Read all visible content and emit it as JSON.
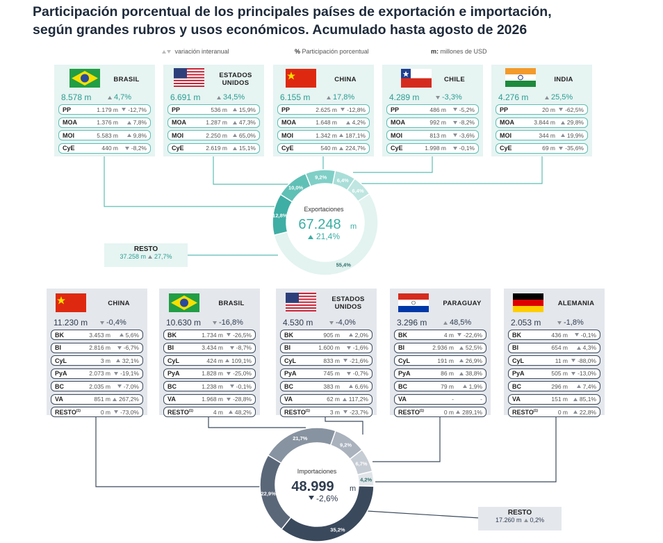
{
  "header": {
    "title": [
      "Participación porcentual de los principales países de exportación e importación,",
      "según grandes rubros y usos económicos. Acumulado hasta agosto de 2026"
    ]
  },
  "legend": {
    "trend": "variación interanual",
    "share_key": "%",
    "share": "Participación porcentual",
    "unit_key": "m:",
    "unit": "millones de USD"
  },
  "exports": {
    "countries": [
      {
        "name": "BRASIL",
        "total": "8.578 m",
        "change": "4,7%",
        "trend": "up",
        "rows": [
          {
            "label": "PP",
            "value": "1.179 m",
            "change": "-12,7%",
            "trend": "down"
          },
          {
            "label": "MOA",
            "value": "1.376 m",
            "change": "7,8%",
            "trend": "up"
          },
          {
            "label": "MOI",
            "value": "5.583 m",
            "change": "9,8%",
            "trend": "up"
          },
          {
            "label": "CyE",
            "value": "440 m",
            "change": "-8,2%",
            "trend": "down"
          }
        ]
      },
      {
        "name": "ESTADOS UNIDOS",
        "total": "6.691 m",
        "change": "34,5%",
        "trend": "up",
        "rows": [
          {
            "label": "PP",
            "value": "536 m",
            "change": "15,9%",
            "trend": "up"
          },
          {
            "label": "MOA",
            "value": "1.287 m",
            "change": "47,3%",
            "trend": "up"
          },
          {
            "label": "MOI",
            "value": "2.250 m",
            "change": "65,0%",
            "trend": "up"
          },
          {
            "label": "CyE",
            "value": "2.619 m",
            "change": "15,1%",
            "trend": "up"
          }
        ]
      },
      {
        "name": "CHINA",
        "total": "6.155 m",
        "change": "17,8%",
        "trend": "up",
        "rows": [
          {
            "label": "PP",
            "value": "2.625 m",
            "change": "-12,8%",
            "trend": "down"
          },
          {
            "label": "MOA",
            "value": "1.648 m",
            "change": "4,2%",
            "trend": "up"
          },
          {
            "label": "MOI",
            "value": "1.342 m",
            "change": "187,1%",
            "trend": "up"
          },
          {
            "label": "CyE",
            "value": "540 m",
            "change": "224,7%",
            "trend": "up"
          }
        ]
      },
      {
        "name": "CHILE",
        "total": "4.289 m",
        "change": "-3,3%",
        "trend": "down",
        "rows": [
          {
            "label": "PP",
            "value": "486 m",
            "change": "-5,2%",
            "trend": "down"
          },
          {
            "label": "MOA",
            "value": "992 m",
            "change": "-8,2%",
            "trend": "down"
          },
          {
            "label": "MOI",
            "value": "813 m",
            "change": "-3,6%",
            "trend": "down"
          },
          {
            "label": "CyE",
            "value": "1.998 m",
            "change": "-0,1%",
            "trend": "down"
          }
        ]
      },
      {
        "name": "INDIA",
        "total": "4.276 m",
        "change": "25,5%",
        "trend": "up",
        "rows": [
          {
            "label": "PP",
            "value": "20 m",
            "change": "-62,5%",
            "trend": "down"
          },
          {
            "label": "MOA",
            "value": "3.844 m",
            "change": "29,8%",
            "trend": "up"
          },
          {
            "label": "MOI",
            "value": "344 m",
            "change": "19,9%",
            "trend": "up"
          },
          {
            "label": "CyE",
            "value": "69 m",
            "change": "-35,6%",
            "trend": "down"
          }
        ]
      }
    ],
    "resto": {
      "name": "RESTO",
      "total": "37.258 m",
      "change": "27,7%"
    },
    "donut": {
      "label": "Exportaciones",
      "total": "67.248",
      "unit": "m",
      "change": "21,4%",
      "segments": [
        {
          "value": 9.2,
          "label": "9,2%",
          "color": "#7fcfc7"
        },
        {
          "value": 6.4,
          "label": "6,4%",
          "color": "#a9ded8"
        },
        {
          "value": 6.4,
          "label": "6,4%",
          "color": "#bfe6e1"
        },
        {
          "value": 55.4,
          "label": "55,4%",
          "color": "#e2f3f0"
        },
        {
          "value": 12.8,
          "label": "12,8%",
          "color": "#3fae a4"
        },
        {
          "value": 10.0,
          "label": "10,0%",
          "color": "#5fc0b6"
        }
      ]
    }
  },
  "imports": {
    "countries": [
      {
        "name": "CHINA",
        "total": "11.230 m",
        "change": "-0,4%",
        "trend": "down",
        "rows": [
          {
            "label": "BK",
            "value": "3.453 m",
            "change": "5,6%",
            "trend": "up"
          },
          {
            "label": "BI",
            "value": "2.816 m",
            "change": "-6,7%",
            "trend": "down"
          },
          {
            "label": "CyL",
            "value": "3 m",
            "change": "32,1%",
            "trend": "up"
          },
          {
            "label": "PyA",
            "value": "2.073 m",
            "change": "-19,1%",
            "trend": "down"
          },
          {
            "label": "BC",
            "value": "2.035 m",
            "change": "-7,0%",
            "trend": "down"
          },
          {
            "label": "VA",
            "value": "851 m",
            "change": "267,2%",
            "trend": "up"
          },
          {
            "label": "RESTO",
            "note": "(1)",
            "value": "0 m",
            "change": "-73,0%",
            "trend": "down"
          }
        ]
      },
      {
        "name": "BRASIL",
        "total": "10.630 m",
        "change": "-16,8%",
        "trend": "down",
        "rows": [
          {
            "label": "BK",
            "value": "1.734 m",
            "change": "-26,5%",
            "trend": "down"
          },
          {
            "label": "BI",
            "value": "3.434 m",
            "change": "-8,7%",
            "trend": "down"
          },
          {
            "label": "CyL",
            "value": "424 m",
            "change": "109,1%",
            "trend": "up"
          },
          {
            "label": "PyA",
            "value": "1.828 m",
            "change": "-25,0%",
            "trend": "down"
          },
          {
            "label": "BC",
            "value": "1.238 m",
            "change": "-0,1%",
            "trend": "down"
          },
          {
            "label": "VA",
            "value": "1.968 m",
            "change": "-28,8%",
            "trend": "down"
          },
          {
            "label": "RESTO",
            "note": "(1)",
            "value": "4 m",
            "change": "48,2%",
            "trend": "up"
          }
        ]
      },
      {
        "name": "ESTADOS UNIDOS",
        "total": "4.530 m",
        "change": "-4,0%",
        "trend": "down",
        "rows": [
          {
            "label": "BK",
            "value": "905 m",
            "change": "2,0%",
            "trend": "up"
          },
          {
            "label": "BI",
            "value": "1.600 m",
            "change": "-1,6%",
            "trend": "down"
          },
          {
            "label": "CyL",
            "value": "833 m",
            "change": "-21,6%",
            "trend": "down"
          },
          {
            "label": "PyA",
            "value": "745 m",
            "change": "-0,7%",
            "trend": "down"
          },
          {
            "label": "BC",
            "value": "383 m",
            "change": "6,6%",
            "trend": "up"
          },
          {
            "label": "VA",
            "value": "62 m",
            "change": "117,2%",
            "trend": "up"
          },
          {
            "label": "RESTO",
            "note": "(1)",
            "value": "3 m",
            "change": "-23,7%",
            "trend": "down"
          }
        ]
      },
      {
        "name": "PARAGUAY",
        "total": "3.296 m",
        "change": "48,5%",
        "trend": "up",
        "rows": [
          {
            "label": "BK",
            "value": "4 m",
            "change": "-22,6%",
            "trend": "down"
          },
          {
            "label": "BI",
            "value": "2.936 m",
            "change": "52,5%",
            "trend": "up"
          },
          {
            "label": "CyL",
            "value": "191 m",
            "change": "26,9%",
            "trend": "up"
          },
          {
            "label": "PyA",
            "value": "86 m",
            "change": "38,8%",
            "trend": "up"
          },
          {
            "label": "BC",
            "value": "79 m",
            "change": "1,9%",
            "trend": "up"
          },
          {
            "label": "VA",
            "value": "-",
            "change": "-"
          },
          {
            "label": "RESTO",
            "note": "(1)",
            "value": "0 m",
            "change": "289,1%",
            "trend": "up"
          }
        ]
      },
      {
        "name": "ALEMANIA",
        "total": "2.053 m",
        "change": "-1,8%",
        "trend": "down",
        "rows": [
          {
            "label": "BK",
            "value": "436 m",
            "change": "-0,1%",
            "trend": "down"
          },
          {
            "label": "BI",
            "value": "654 m",
            "change": "4,3%",
            "trend": "up"
          },
          {
            "label": "CyL",
            "value": "11 m",
            "change": "-88,0%",
            "trend": "down"
          },
          {
            "label": "PyA",
            "value": "505 m",
            "change": "-13,0%",
            "trend": "down"
          },
          {
            "label": "BC",
            "value": "296 m",
            "change": "7,4%",
            "trend": "up"
          },
          {
            "label": "VA",
            "value": "151 m",
            "change": "85,1%",
            "trend": "up"
          },
          {
            "label": "RESTO",
            "note": "(1)",
            "value": "0 m",
            "change": "22,8%",
            "trend": "up"
          }
        ]
      }
    ],
    "resto": {
      "name": "RESTO",
      "total": "17.260 m",
      "change": "0,2%"
    },
    "donut": {
      "label": "Importaciones",
      "total": "48.999",
      "unit": "m",
      "change": "-2,6%",
      "segments": [
        {
          "value": 21.7,
          "label": "21,7%",
          "color": "#8893a1"
        },
        {
          "value": 9.2,
          "label": "9,2%",
          "color": "#a9b2bd"
        },
        {
          "value": 6.7,
          "label": "6,7%",
          "color": "#c6ccd4"
        },
        {
          "value": 4.2,
          "label": "4,2%",
          "color": "#e1e5ea"
        },
        {
          "value": 35.2,
          "label": "35,2%",
          "color": "#3a495c"
        },
        {
          "value": 22.9,
          "label": "22,9%",
          "color": "#5a6779"
        }
      ]
    }
  }
}
